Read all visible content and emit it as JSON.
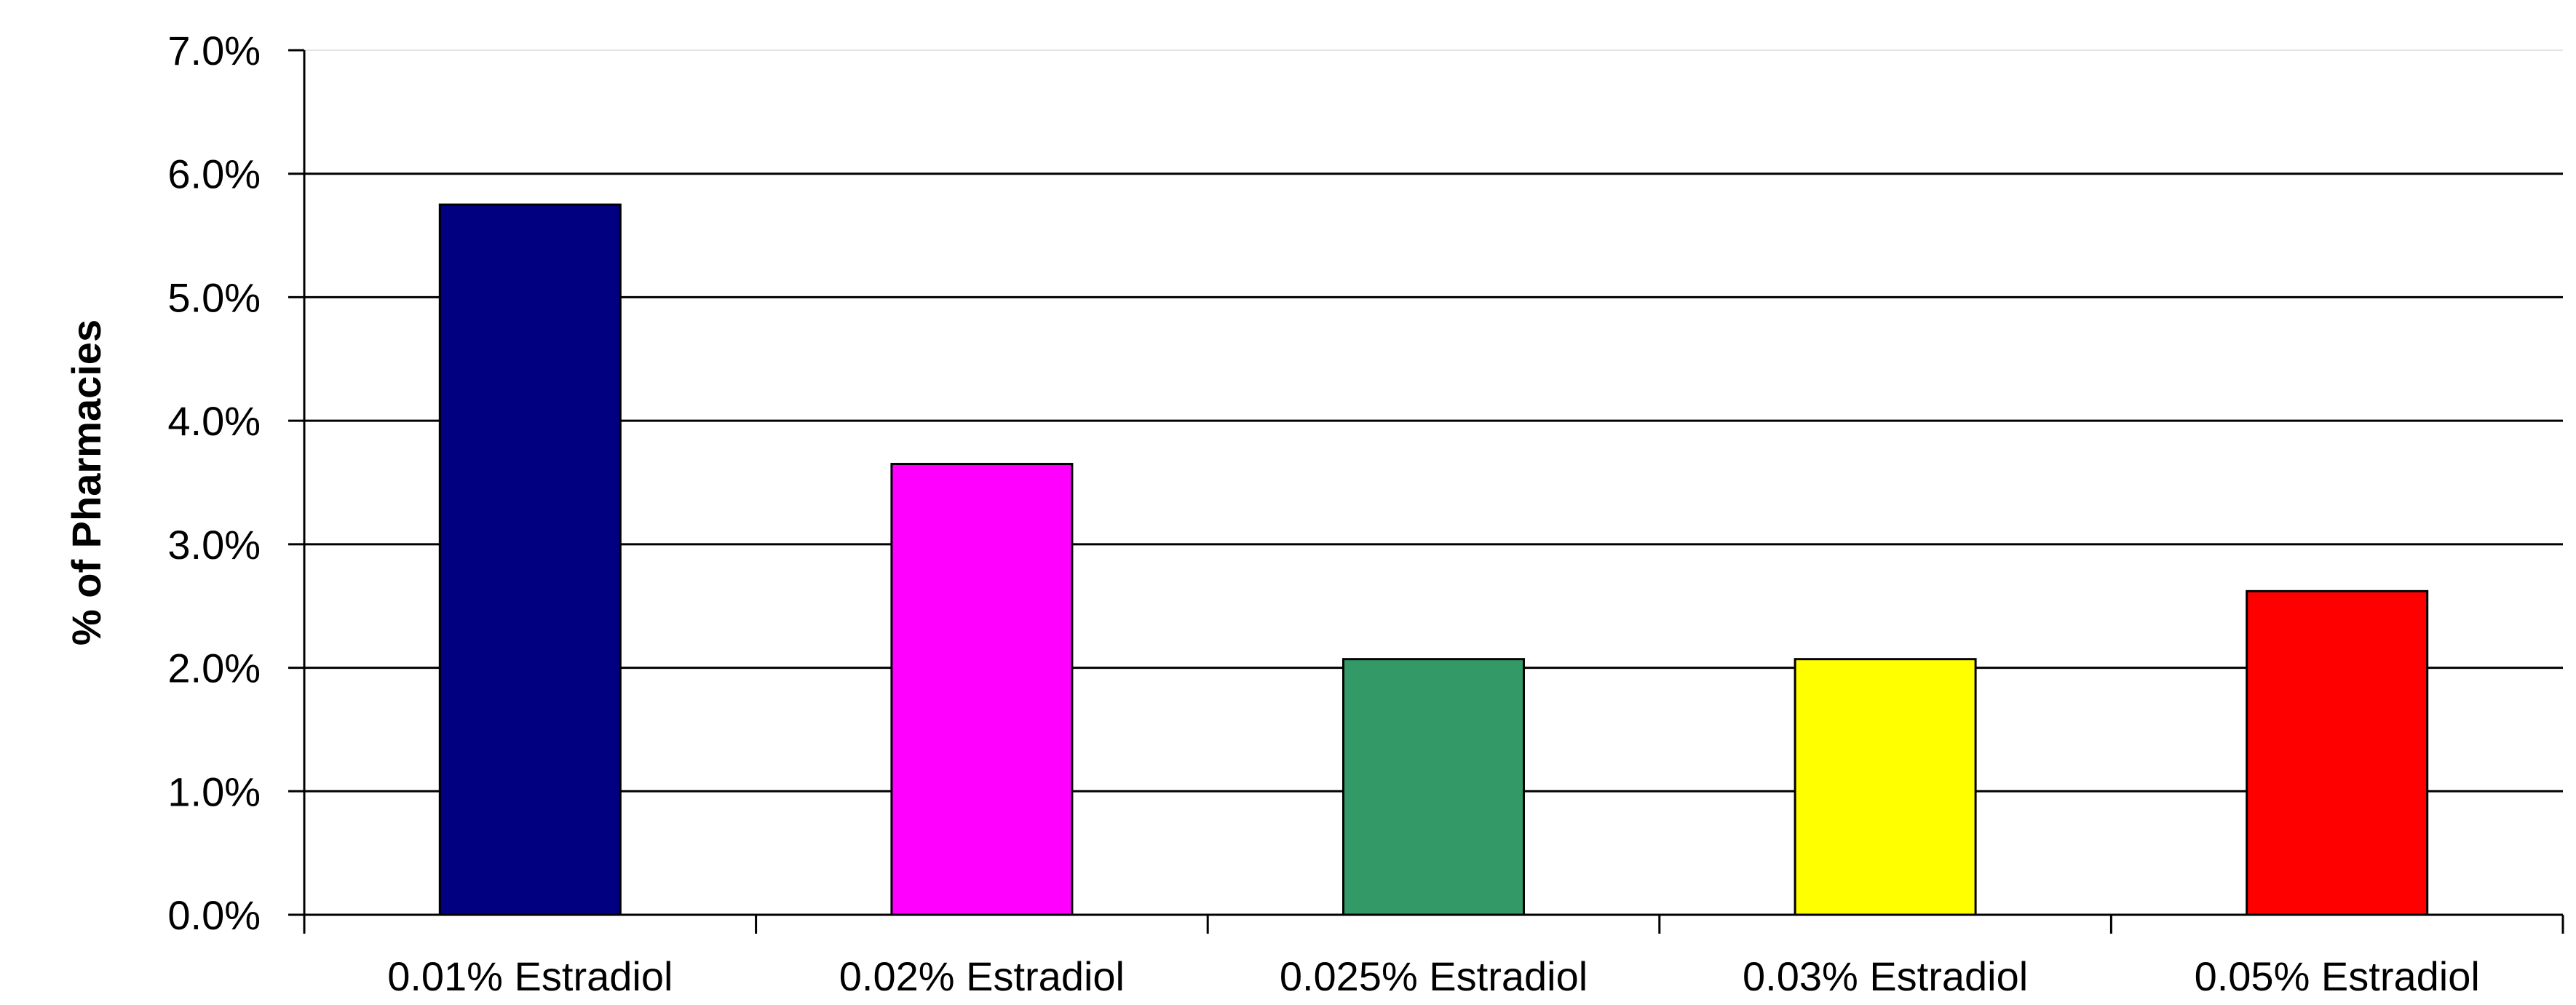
{
  "chart_data": {
    "type": "bar",
    "title": "",
    "xlabel": "",
    "ylabel": "% of Pharmacies",
    "categories": [
      "0.01% Estradiol",
      "0.02% Estradiol",
      "0.025% Estradiol",
      "0.03% Estradiol",
      "0.05% Estradiol"
    ],
    "values": [
      5.75,
      3.65,
      2.07,
      2.07,
      2.62
    ],
    "colors": [
      "#000080",
      "#FF00FF",
      "#339966",
      "#FFFF00",
      "#FF0000"
    ],
    "ylim": [
      0,
      7
    ],
    "yticks": [
      0,
      1,
      2,
      3,
      4,
      5,
      6,
      7
    ],
    "ytick_labels": [
      "0.0%",
      "1.0%",
      "2.0%",
      "3.0%",
      "4.0%",
      "5.0%",
      "6.0%",
      "7.0%"
    ],
    "grid": true,
    "legend": "none"
  }
}
